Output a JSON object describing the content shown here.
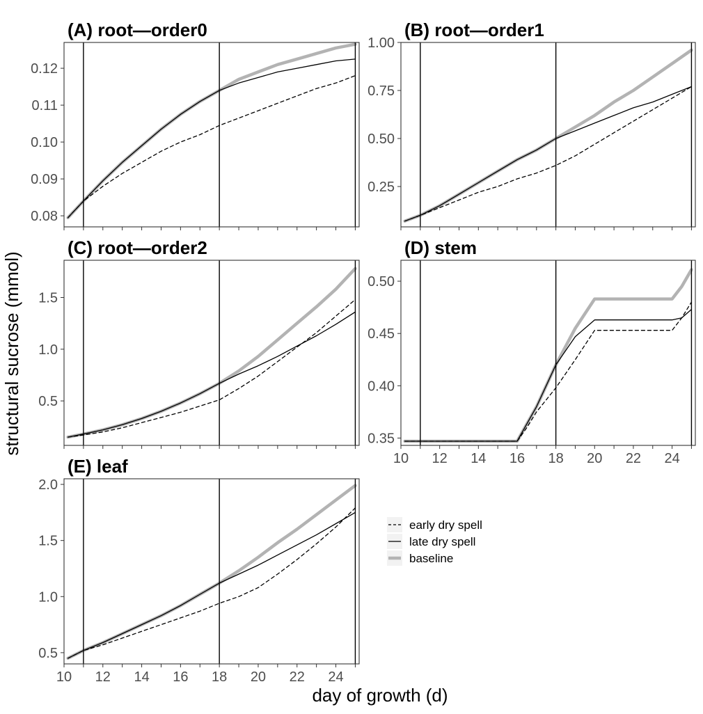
{
  "axes": {
    "xlabel": "day of growth (d)",
    "ylabel": "structural sucrose (mmol)"
  },
  "legend": {
    "placement": "right-middle",
    "items": [
      {
        "label": "early dry spell",
        "style": "dashed",
        "color": "#000000"
      },
      {
        "label": "late dry spell",
        "style": "solid",
        "color": "#000000"
      },
      {
        "label": "baseline",
        "style": "thick",
        "color": "#b3b3b3"
      }
    ]
  },
  "chart_data": [
    {
      "type": "line",
      "title": "(A) root—order0",
      "xlim": [
        10,
        25.2
      ],
      "ylim": [
        0.077,
        0.127
      ],
      "yticks": [
        0.08,
        0.09,
        0.1,
        0.11,
        0.12
      ],
      "ytick_labels": [
        "0.08",
        "0.09",
        "0.10",
        "0.11",
        "0.12"
      ],
      "xticks": [],
      "xtick_labels": [],
      "vlines": [
        11,
        18,
        25
      ],
      "series": [
        {
          "name": "early dry spell",
          "x": [
            10.2,
            11,
            12,
            13,
            14,
            15,
            16,
            17,
            18,
            19,
            20,
            21,
            22,
            23,
            24,
            25
          ],
          "y": [
            0.0795,
            0.084,
            0.088,
            0.0915,
            0.0945,
            0.0975,
            0.1,
            0.102,
            0.1045,
            0.1065,
            0.1085,
            0.1105,
            0.1125,
            0.1145,
            0.116,
            0.118
          ]
        },
        {
          "name": "late dry spell",
          "x": [
            10.2,
            11,
            12,
            13,
            14,
            15,
            16,
            17,
            18,
            19,
            20,
            21,
            22,
            23,
            24,
            25
          ],
          "y": [
            0.0795,
            0.084,
            0.0895,
            0.0945,
            0.099,
            0.1035,
            0.1075,
            0.111,
            0.114,
            0.116,
            0.1175,
            0.119,
            0.12,
            0.121,
            0.122,
            0.1225
          ]
        },
        {
          "name": "baseline",
          "x": [
            10.2,
            11,
            12,
            13,
            14,
            15,
            16,
            17,
            18,
            19,
            20,
            21,
            22,
            23,
            24,
            25
          ],
          "y": [
            0.0795,
            0.084,
            0.0895,
            0.0945,
            0.099,
            0.1035,
            0.1075,
            0.111,
            0.114,
            0.117,
            0.119,
            0.121,
            0.1225,
            0.124,
            0.1255,
            0.1265
          ]
        }
      ]
    },
    {
      "type": "line",
      "title": "(B) root—order1",
      "xlim": [
        10,
        25.2
      ],
      "ylim": [
        0.04,
        1.0
      ],
      "yticks": [
        0.25,
        0.5,
        0.75,
        1.0
      ],
      "ytick_labels": [
        "0.25",
        "0.50",
        "0.75",
        "1.00"
      ],
      "xticks": [],
      "xtick_labels": [],
      "vlines": [
        11,
        18,
        25
      ],
      "series": [
        {
          "name": "early dry spell",
          "x": [
            10.2,
            11,
            12,
            13,
            14,
            15,
            16,
            17,
            18,
            19,
            20,
            21,
            22,
            23,
            24,
            25
          ],
          "y": [
            0.07,
            0.1,
            0.14,
            0.18,
            0.22,
            0.25,
            0.29,
            0.32,
            0.36,
            0.41,
            0.47,
            0.53,
            0.59,
            0.65,
            0.71,
            0.77
          ]
        },
        {
          "name": "late dry spell",
          "x": [
            10.2,
            11,
            12,
            13,
            14,
            15,
            16,
            17,
            18,
            19,
            20,
            21,
            22,
            23,
            24,
            25
          ],
          "y": [
            0.07,
            0.1,
            0.15,
            0.21,
            0.27,
            0.33,
            0.39,
            0.44,
            0.5,
            0.54,
            0.58,
            0.62,
            0.66,
            0.69,
            0.73,
            0.77
          ]
        },
        {
          "name": "baseline",
          "x": [
            10.2,
            11,
            12,
            13,
            14,
            15,
            16,
            17,
            18,
            19,
            20,
            21,
            22,
            23,
            24,
            25
          ],
          "y": [
            0.07,
            0.1,
            0.15,
            0.21,
            0.27,
            0.33,
            0.39,
            0.44,
            0.5,
            0.56,
            0.62,
            0.69,
            0.75,
            0.82,
            0.89,
            0.96
          ]
        }
      ]
    },
    {
      "type": "line",
      "title": "(C) root—order2",
      "xlim": [
        10,
        25.2
      ],
      "ylim": [
        0.07,
        1.86
      ],
      "yticks": [
        0.5,
        1.0,
        1.5
      ],
      "ytick_labels": [
        "0.5",
        "1.0",
        "1.5"
      ],
      "xticks": [],
      "xtick_labels": [],
      "vlines": [
        11,
        18,
        25
      ],
      "series": [
        {
          "name": "early dry spell",
          "x": [
            10.2,
            11,
            12,
            13,
            14,
            15,
            16,
            17,
            18,
            19,
            20,
            21,
            22,
            23,
            24,
            25
          ],
          "y": [
            0.15,
            0.17,
            0.2,
            0.24,
            0.29,
            0.34,
            0.39,
            0.45,
            0.51,
            0.62,
            0.74,
            0.88,
            1.02,
            1.16,
            1.32,
            1.48
          ]
        },
        {
          "name": "late dry spell",
          "x": [
            10.2,
            11,
            12,
            13,
            14,
            15,
            16,
            17,
            18,
            19,
            20,
            21,
            22,
            23,
            24,
            25
          ],
          "y": [
            0.15,
            0.18,
            0.22,
            0.27,
            0.33,
            0.4,
            0.48,
            0.57,
            0.67,
            0.76,
            0.84,
            0.93,
            1.03,
            1.13,
            1.24,
            1.36
          ]
        },
        {
          "name": "baseline",
          "x": [
            10.2,
            11,
            12,
            13,
            14,
            15,
            16,
            17,
            18,
            19,
            20,
            21,
            22,
            23,
            24,
            25
          ],
          "y": [
            0.15,
            0.18,
            0.22,
            0.27,
            0.33,
            0.4,
            0.48,
            0.57,
            0.67,
            0.79,
            0.93,
            1.09,
            1.25,
            1.41,
            1.58,
            1.78
          ]
        }
      ]
    },
    {
      "type": "line",
      "title": "(D) stem",
      "xlim": [
        10,
        25.2
      ],
      "ylim": [
        0.343,
        0.52
      ],
      "yticks": [
        0.35,
        0.4,
        0.45,
        0.5
      ],
      "ytick_labels": [
        "0.35",
        "0.40",
        "0.45",
        "0.50"
      ],
      "xticks": [
        10,
        12,
        14,
        16,
        18,
        20,
        22,
        24
      ],
      "xtick_labels": [
        "10",
        "12",
        "14",
        "16",
        "18",
        "20",
        "22",
        "24"
      ],
      "vlines": [
        11,
        18,
        25
      ],
      "series": [
        {
          "name": "early dry spell",
          "x": [
            10.2,
            16,
            16.5,
            17,
            18,
            19,
            20,
            24,
            24.5,
            25
          ],
          "y": [
            0.347,
            0.347,
            0.36,
            0.375,
            0.398,
            0.425,
            0.453,
            0.453,
            0.465,
            0.48
          ]
        },
        {
          "name": "late dry spell",
          "x": [
            10.2,
            16,
            17,
            18,
            19,
            20,
            24,
            24.5,
            25
          ],
          "y": [
            0.347,
            0.347,
            0.38,
            0.42,
            0.447,
            0.463,
            0.463,
            0.465,
            0.473
          ]
        },
        {
          "name": "baseline",
          "x": [
            10.2,
            16,
            17,
            18,
            19,
            20,
            24,
            24.5,
            25
          ],
          "y": [
            0.347,
            0.347,
            0.38,
            0.42,
            0.455,
            0.483,
            0.483,
            0.495,
            0.511
          ]
        }
      ]
    },
    {
      "type": "line",
      "title": "(E) leaf",
      "xlim": [
        10,
        25.2
      ],
      "ylim": [
        0.4,
        2.05
      ],
      "yticks": [
        0.5,
        1.0,
        1.5,
        2.0
      ],
      "ytick_labels": [
        "0.5",
        "1.0",
        "1.5",
        "2.0"
      ],
      "xticks": [
        10,
        12,
        14,
        16,
        18,
        20,
        22,
        24
      ],
      "xtick_labels": [
        "10",
        "12",
        "14",
        "16",
        "18",
        "20",
        "22",
        "24"
      ],
      "vlines": [
        11,
        18,
        25
      ],
      "series": [
        {
          "name": "early dry spell",
          "x": [
            10.2,
            11,
            12,
            13,
            14,
            15,
            16,
            17,
            18,
            19,
            20,
            21,
            22,
            23,
            24,
            25
          ],
          "y": [
            0.45,
            0.52,
            0.57,
            0.63,
            0.69,
            0.75,
            0.81,
            0.87,
            0.94,
            1.0,
            1.08,
            1.2,
            1.33,
            1.47,
            1.62,
            1.79
          ]
        },
        {
          "name": "late dry spell",
          "x": [
            10.2,
            11,
            12,
            13,
            14,
            15,
            16,
            17,
            18,
            19,
            20,
            21,
            22,
            23,
            24,
            25
          ],
          "y": [
            0.45,
            0.52,
            0.59,
            0.67,
            0.75,
            0.83,
            0.92,
            1.02,
            1.12,
            1.2,
            1.28,
            1.37,
            1.46,
            1.55,
            1.65,
            1.75
          ]
        },
        {
          "name": "baseline",
          "x": [
            10.2,
            11,
            12,
            13,
            14,
            15,
            16,
            17,
            18,
            19,
            20,
            21,
            22,
            23,
            24,
            25
          ],
          "y": [
            0.45,
            0.52,
            0.59,
            0.67,
            0.75,
            0.83,
            0.92,
            1.02,
            1.12,
            1.23,
            1.35,
            1.48,
            1.6,
            1.73,
            1.86,
            1.99
          ]
        }
      ]
    }
  ]
}
